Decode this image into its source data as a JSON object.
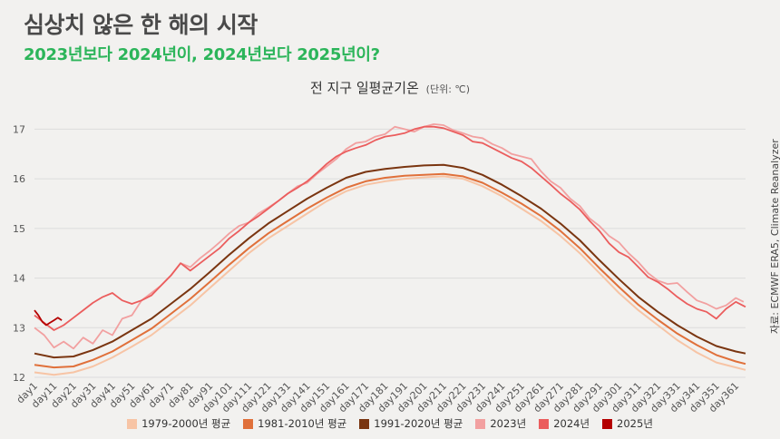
{
  "header": {
    "title": "심상치 않은 한 해의 시작",
    "subtitle": "2023년보다 2024년이, 2024년보다 2025년이?"
  },
  "source": "자료: ECMWF ERA5, Climate Reanalyzer",
  "chart_data": {
    "type": "line",
    "title": "전 지구 일평균기온",
    "unit_label": "(단위: ℃)",
    "xlabel": "",
    "ylabel": "",
    "xlim": [
      1,
      366
    ],
    "ylim": [
      12,
      17.3
    ],
    "yticks": [
      12,
      13,
      14,
      15,
      16,
      17
    ],
    "xticks": [
      "day1",
      "day11",
      "day21",
      "day31",
      "day41",
      "day51",
      "day61",
      "day71",
      "day81",
      "day91",
      "day101",
      "day111",
      "day121",
      "day131",
      "day141",
      "day151",
      "day161",
      "day171",
      "day181",
      "day191",
      "day201",
      "day211",
      "day221",
      "day231",
      "day241",
      "day251",
      "day261",
      "day271",
      "day281",
      "day291",
      "day301",
      "day311",
      "day321",
      "day331",
      "day341",
      "day351",
      "day361"
    ],
    "grid": "horizontal",
    "legend_position": "bottom",
    "series": [
      {
        "name": "1979-2000년 평균",
        "color": "#f7c4a5",
        "x": [
          1,
          11,
          21,
          31,
          41,
          51,
          61,
          71,
          81,
          91,
          101,
          111,
          121,
          131,
          141,
          151,
          161,
          171,
          181,
          191,
          201,
          211,
          221,
          231,
          241,
          251,
          261,
          271,
          281,
          291,
          301,
          311,
          321,
          331,
          341,
          351,
          361,
          366
        ],
        "y": [
          12.1,
          12.05,
          12.1,
          12.22,
          12.4,
          12.62,
          12.85,
          13.15,
          13.45,
          13.8,
          14.15,
          14.5,
          14.8,
          15.05,
          15.3,
          15.55,
          15.75,
          15.88,
          15.95,
          16.0,
          16.03,
          16.05,
          16.0,
          15.85,
          15.65,
          15.4,
          15.15,
          14.85,
          14.5,
          14.1,
          13.7,
          13.35,
          13.05,
          12.75,
          12.5,
          12.3,
          12.2,
          12.15
        ]
      },
      {
        "name": "1981-2010년 평균",
        "color": "#e0703a",
        "x": [
          1,
          11,
          21,
          31,
          41,
          51,
          61,
          71,
          81,
          91,
          101,
          111,
          121,
          131,
          141,
          151,
          161,
          171,
          181,
          191,
          201,
          211,
          221,
          231,
          241,
          251,
          261,
          271,
          281,
          291,
          301,
          311,
          321,
          331,
          341,
          351,
          361,
          366
        ],
        "y": [
          12.25,
          12.2,
          12.22,
          12.35,
          12.52,
          12.75,
          12.98,
          13.28,
          13.58,
          13.92,
          14.27,
          14.6,
          14.9,
          15.15,
          15.4,
          15.62,
          15.82,
          15.95,
          16.02,
          16.06,
          16.08,
          16.1,
          16.05,
          15.92,
          15.72,
          15.5,
          15.25,
          14.95,
          14.6,
          14.2,
          13.82,
          13.46,
          13.16,
          12.88,
          12.65,
          12.45,
          12.32,
          12.27
        ]
      },
      {
        "name": "1991-2020년 평균",
        "color": "#7a3510",
        "x": [
          1,
          11,
          21,
          31,
          41,
          51,
          61,
          71,
          81,
          91,
          101,
          111,
          121,
          131,
          141,
          151,
          161,
          171,
          181,
          191,
          201,
          211,
          221,
          231,
          241,
          251,
          261,
          271,
          281,
          291,
          301,
          311,
          321,
          331,
          341,
          351,
          361,
          366
        ],
        "y": [
          12.48,
          12.4,
          12.42,
          12.55,
          12.72,
          12.95,
          13.18,
          13.48,
          13.78,
          14.12,
          14.47,
          14.8,
          15.1,
          15.35,
          15.6,
          15.82,
          16.02,
          16.14,
          16.2,
          16.24,
          16.27,
          16.28,
          16.22,
          16.08,
          15.88,
          15.65,
          15.4,
          15.1,
          14.76,
          14.36,
          13.98,
          13.62,
          13.32,
          13.05,
          12.82,
          12.63,
          12.52,
          12.48
        ]
      },
      {
        "name": "2023년",
        "color": "#f2a0a0",
        "x": [
          1,
          6,
          11,
          16,
          21,
          26,
          31,
          36,
          41,
          46,
          51,
          56,
          61,
          66,
          71,
          76,
          81,
          86,
          91,
          96,
          101,
          106,
          111,
          116,
          121,
          126,
          131,
          136,
          141,
          146,
          151,
          156,
          161,
          166,
          171,
          176,
          181,
          186,
          191,
          196,
          201,
          206,
          211,
          216,
          221,
          226,
          231,
          236,
          241,
          246,
          251,
          256,
          261,
          266,
          271,
          276,
          281,
          286,
          291,
          296,
          301,
          306,
          311,
          316,
          321,
          326,
          331,
          336,
          341,
          346,
          351,
          356,
          361,
          365
        ],
        "y": [
          13.0,
          12.85,
          12.6,
          12.72,
          12.58,
          12.8,
          12.68,
          12.95,
          12.85,
          13.18,
          13.25,
          13.55,
          13.7,
          13.85,
          14.05,
          14.3,
          14.22,
          14.4,
          14.55,
          14.72,
          14.9,
          15.05,
          15.12,
          15.3,
          15.42,
          15.55,
          15.7,
          15.85,
          15.92,
          16.1,
          16.25,
          16.4,
          16.6,
          16.72,
          16.75,
          16.85,
          16.9,
          17.05,
          17.0,
          16.95,
          17.05,
          17.1,
          17.08,
          16.98,
          16.92,
          16.85,
          16.82,
          16.7,
          16.62,
          16.5,
          16.45,
          16.4,
          16.15,
          15.95,
          15.82,
          15.6,
          15.45,
          15.2,
          15.05,
          14.85,
          14.72,
          14.5,
          14.32,
          14.1,
          13.95,
          13.88,
          13.9,
          13.72,
          13.55,
          13.48,
          13.38,
          13.45,
          13.6,
          13.52
        ]
      },
      {
        "name": "2024년",
        "color": "#eb5d5d",
        "x": [
          1,
          6,
          11,
          16,
          21,
          26,
          31,
          36,
          41,
          46,
          51,
          56,
          61,
          66,
          71,
          76,
          81,
          86,
          91,
          96,
          101,
          106,
          111,
          116,
          121,
          126,
          131,
          136,
          141,
          146,
          151,
          156,
          161,
          166,
          171,
          176,
          181,
          186,
          191,
          196,
          201,
          206,
          211,
          216,
          221,
          226,
          231,
          236,
          241,
          246,
          251,
          256,
          261,
          266,
          271,
          276,
          281,
          286,
          291,
          296,
          301,
          306,
          311,
          316,
          321,
          326,
          331,
          336,
          341,
          346,
          351,
          356,
          361,
          366
        ],
        "y": [
          13.25,
          13.1,
          12.95,
          13.05,
          13.2,
          13.35,
          13.5,
          13.62,
          13.7,
          13.55,
          13.48,
          13.55,
          13.65,
          13.85,
          14.05,
          14.3,
          14.15,
          14.3,
          14.45,
          14.6,
          14.8,
          14.95,
          15.12,
          15.25,
          15.4,
          15.55,
          15.7,
          15.82,
          15.95,
          16.12,
          16.3,
          16.45,
          16.55,
          16.62,
          16.68,
          16.78,
          16.85,
          16.88,
          16.92,
          17.0,
          17.05,
          17.05,
          17.02,
          16.95,
          16.88,
          16.75,
          16.72,
          16.62,
          16.52,
          16.42,
          16.35,
          16.22,
          16.05,
          15.88,
          15.7,
          15.55,
          15.38,
          15.15,
          14.95,
          14.7,
          14.52,
          14.42,
          14.22,
          14.02,
          13.92,
          13.78,
          13.62,
          13.48,
          13.38,
          13.32,
          13.18,
          13.38,
          13.52,
          13.42
        ]
      },
      {
        "name": "2025년",
        "color": "#b40000",
        "x": [
          1,
          3,
          5,
          7,
          9,
          11,
          13,
          15
        ],
        "y": [
          13.35,
          13.25,
          13.12,
          13.05,
          13.1,
          13.15,
          13.2,
          13.15
        ]
      }
    ]
  }
}
